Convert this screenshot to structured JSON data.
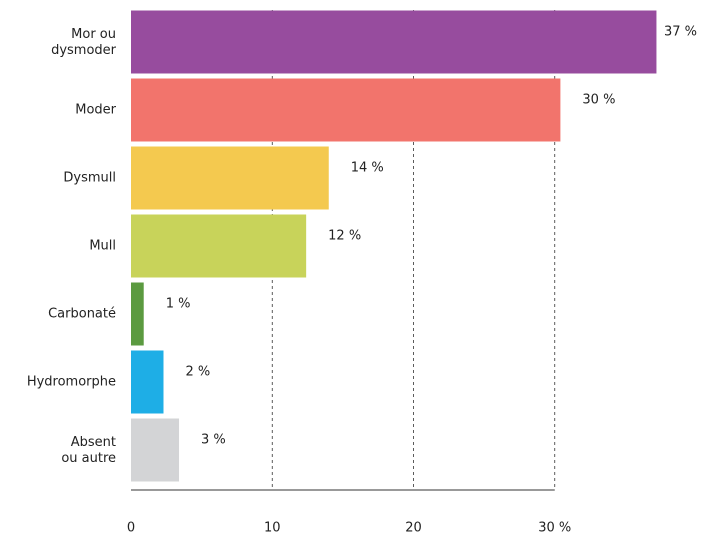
{
  "chart_data": {
    "type": "hbar",
    "categories": [
      "Mor ou\ndysmoder",
      "Moder",
      "Dysmull",
      "Mull",
      "Carbonaté",
      "Hydromorphe",
      "Absent\nou autre"
    ],
    "values": [
      37.2,
      30.4,
      14.0,
      12.4,
      0.9,
      2.3,
      3.4
    ],
    "value_labels": [
      "37 %",
      "30 %",
      "14 %",
      "12 %",
      "1 %",
      "2 %",
      "3 %"
    ],
    "colors": [
      "#974c9e",
      "#f2746c",
      "#f4c94f",
      "#c8d35a",
      "#5b9a40",
      "#1eaee6",
      "#d3d4d6"
    ],
    "xlim": [
      0,
      40
    ],
    "xticks": [
      0,
      10,
      20,
      {
        "value": 30,
        "label": "30 %"
      }
    ],
    "grid": true
  }
}
